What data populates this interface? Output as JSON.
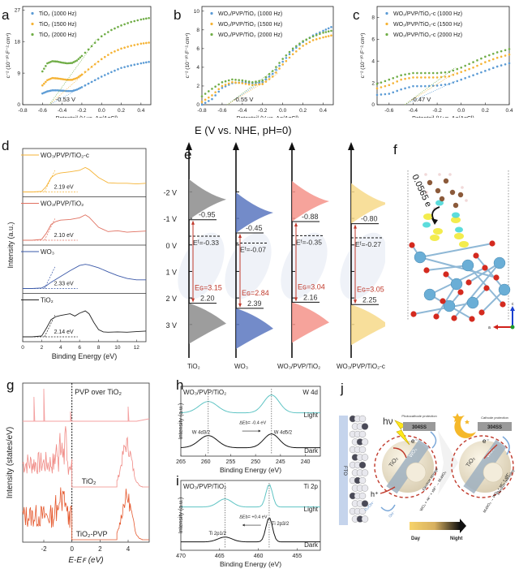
{
  "chart_data": [
    {
      "panel": "a",
      "type": "scatter",
      "title": "",
      "xlabel": "Potentail (V vs. Ag/AgCl)",
      "ylabel": "c⁻² (10⁻¹⁰·F⁻²·cm⁴)",
      "xlim": [
        -0.8,
        0.5
      ],
      "ylim": [
        0,
        28
      ],
      "xticks": [
        "-0.8",
        "-0.6",
        "-0.4",
        "-0.2",
        "0.0",
        "0.2",
        "0.4"
      ],
      "yticks": [
        "0",
        "9",
        "18",
        "27"
      ],
      "annotation": "-0.53 V",
      "intercept": -0.53,
      "series": [
        {
          "name": "TiO₂ (1000 Hz)",
          "color": "#5b9bd5",
          "x": [
            -0.6,
            -0.55,
            -0.5,
            -0.45,
            -0.4,
            -0.35,
            -0.3,
            -0.25,
            -0.2,
            -0.1,
            0.0,
            0.1,
            0.2,
            0.3,
            0.4,
            0.48
          ],
          "y": [
            3.2,
            3.8,
            4.1,
            4.1,
            4.0,
            3.9,
            3.9,
            4.3,
            5.0,
            6.5,
            8.0,
            9.3,
            10.5,
            11.2,
            11.8,
            12.2
          ]
        },
        {
          "name": "TiO₂ (1500 Hz)",
          "color": "#f5b335",
          "x": [
            -0.6,
            -0.55,
            -0.5,
            -0.45,
            -0.4,
            -0.35,
            -0.3,
            -0.25,
            -0.2,
            -0.1,
            0.0,
            0.1,
            0.2,
            0.3,
            0.4,
            0.48
          ],
          "y": [
            5.5,
            7.0,
            7.6,
            7.5,
            7.3,
            7.1,
            7.1,
            7.6,
            8.6,
            10.8,
            13.0,
            14.8,
            16.0,
            16.8,
            17.4,
            17.7
          ]
        },
        {
          "name": "TiO₂ (2000 Hz)",
          "color": "#70ad47",
          "x": [
            -0.6,
            -0.55,
            -0.5,
            -0.45,
            -0.4,
            -0.35,
            -0.3,
            -0.25,
            -0.2,
            -0.1,
            0.0,
            0.1,
            0.2,
            0.3,
            0.4,
            0.48
          ],
          "y": [
            9.5,
            11.8,
            12.4,
            12.3,
            12.0,
            11.8,
            11.9,
            12.6,
            13.9,
            16.7,
            19.5,
            21.3,
            22.6,
            23.6,
            24.3,
            24.7
          ]
        }
      ]
    },
    {
      "panel": "b",
      "type": "scatter",
      "title": "",
      "xlabel": "Potentail (V vs. Ag/AgCl)",
      "ylabel": "c⁻² (10⁻¹⁰·F⁻²·cm⁴)",
      "xlim": [
        -0.8,
        0.5
      ],
      "ylim": [
        0,
        10.5
      ],
      "xticks": [
        "-0.8",
        "-0.6",
        "-0.4",
        "-0.2",
        "0.0",
        "0.2",
        "0.4"
      ],
      "yticks": [
        "0",
        "2",
        "4",
        "6",
        "8",
        "10"
      ],
      "annotation": "-0.55 V",
      "intercept": -0.55,
      "series": [
        {
          "name": "WO₃/PVP/TiO₂ (1000 Hz)",
          "color": "#5b9bd5",
          "x": [
            -0.8,
            -0.7,
            -0.6,
            -0.5,
            -0.4,
            -0.3,
            -0.2,
            -0.1,
            0.0,
            0.1,
            0.2,
            0.3,
            0.4,
            0.48
          ],
          "y": [
            0.0,
            0.6,
            1.8,
            2.3,
            2.4,
            2.3,
            2.4,
            3.3,
            4.6,
            5.8,
            6.7,
            7.4,
            7.9,
            8.3
          ]
        },
        {
          "name": "WO₃/PVP/TiO₂ (1500 Hz)",
          "color": "#f5b335",
          "x": [
            -0.8,
            -0.7,
            -0.6,
            -0.5,
            -0.4,
            -0.3,
            -0.2,
            -0.1,
            0.0,
            0.1,
            0.2,
            0.3,
            0.4,
            0.48
          ],
          "y": [
            0.3,
            1.0,
            2.0,
            2.4,
            2.3,
            2.1,
            2.2,
            3.0,
            4.3,
            5.4,
            6.3,
            6.9,
            7.2,
            7.4
          ]
        },
        {
          "name": "WO₃/PVP/TiO₂ (2000 Hz)",
          "color": "#70ad47",
          "x": [
            -0.8,
            -0.7,
            -0.6,
            -0.5,
            -0.4,
            -0.3,
            -0.2,
            -0.1,
            0.0,
            0.1,
            0.2,
            0.3,
            0.4,
            0.48
          ],
          "y": [
            0.9,
            1.7,
            2.4,
            2.7,
            2.6,
            2.4,
            2.6,
            3.6,
            4.9,
            6.0,
            6.8,
            7.3,
            7.7,
            7.9
          ]
        }
      ]
    },
    {
      "panel": "c",
      "type": "scatter",
      "title": "",
      "xlabel": "Potentail (V vs. Ag/AgCl)",
      "ylabel": "c⁻² (10⁻¹⁰·F⁻²·cm⁴)",
      "xlim": [
        -0.7,
        0.4
      ],
      "ylim": [
        0,
        9
      ],
      "xticks": [
        "-0.6",
        "-0.4",
        "-0.2",
        "0.0",
        "0.2",
        "0.4"
      ],
      "yticks": [
        "0",
        "2",
        "4",
        "6",
        "8"
      ],
      "annotation": "-0.47 V",
      "intercept": -0.47,
      "series": [
        {
          "name": "WO₃/PVP/TiO₂-c (1000 Hz)",
          "color": "#5b9bd5",
          "x": [
            -0.7,
            -0.6,
            -0.5,
            -0.4,
            -0.3,
            -0.2,
            -0.1,
            0.0,
            0.1,
            0.2,
            0.3,
            0.4
          ],
          "y": [
            0.9,
            1.0,
            1.4,
            1.7,
            1.7,
            1.75,
            1.9,
            2.3,
            2.7,
            3.1,
            3.5,
            3.8
          ]
        },
        {
          "name": "WO₃/PVP/TiO₂-c (1500 Hz)",
          "color": "#f5b335",
          "x": [
            -0.7,
            -0.6,
            -0.5,
            -0.4,
            -0.3,
            -0.2,
            -0.1,
            0.0,
            0.1,
            0.2,
            0.3,
            0.4
          ],
          "y": [
            1.5,
            1.8,
            2.3,
            2.5,
            2.5,
            2.5,
            2.6,
            3.0,
            3.4,
            3.9,
            4.3,
            4.6
          ]
        },
        {
          "name": "WO₃/PVP/TiO₂-c (2000 Hz)",
          "color": "#70ad47",
          "x": [
            -0.7,
            -0.6,
            -0.5,
            -0.4,
            -0.3,
            -0.2,
            -0.1,
            0.0,
            0.1,
            0.2,
            0.3,
            0.4
          ],
          "y": [
            1.9,
            2.3,
            2.7,
            2.9,
            2.9,
            2.9,
            3.0,
            3.4,
            3.9,
            4.4,
            4.8,
            5.1
          ]
        }
      ]
    },
    {
      "panel": "d",
      "type": "line",
      "xlabel": "Binding Energy (eV)",
      "ylabel": "Intensity (a.u.)",
      "xlim": [
        0,
        13
      ],
      "xticks": [
        "0",
        "2",
        "4",
        "6",
        "8",
        "10",
        "12"
      ],
      "series": [
        {
          "name": "WO₃/PVP/TiO₂-c",
          "color": "#f5b335",
          "bandgap": "2.19 eV",
          "x": [
            0,
            1,
            2,
            2.5,
            3,
            3.5,
            4,
            5,
            6,
            6.6,
            7,
            8,
            9,
            10,
            11,
            12,
            13
          ],
          "y": [
            0,
            0,
            0.02,
            0.2,
            0.5,
            0.62,
            0.66,
            0.7,
            0.75,
            0.85,
            0.78,
            0.5,
            0.32,
            0.3,
            0.3,
            0.28,
            0.3
          ]
        },
        {
          "name": "WO₃/PVP/TiO₂",
          "color": "#e07060",
          "bandgap": "2.10 eV",
          "x": [
            0,
            1,
            2,
            2.5,
            3,
            3.5,
            4,
            5,
            6,
            6.6,
            7,
            8,
            9,
            10,
            11,
            12,
            13
          ],
          "y": [
            0,
            0,
            0.03,
            0.25,
            0.55,
            0.65,
            0.7,
            0.72,
            0.78,
            0.88,
            0.8,
            0.45,
            0.3,
            0.33,
            0.28,
            0.3,
            0.32
          ]
        },
        {
          "name": "WO₃",
          "color": "#3a58a8",
          "bandgap": "2.33 eV",
          "x": [
            0,
            1,
            2,
            2.5,
            3,
            4,
            5,
            6,
            6.6,
            7,
            8,
            9,
            10,
            11,
            12,
            13
          ],
          "y": [
            0,
            0,
            0.02,
            0.1,
            0.22,
            0.42,
            0.62,
            0.8,
            0.84,
            0.82,
            0.72,
            0.58,
            0.45,
            0.35,
            0.3,
            0.3
          ]
        },
        {
          "name": "TiO₂",
          "color": "#222222",
          "bandgap": "2.14 eV",
          "x": [
            0,
            1,
            2,
            2.5,
            3,
            3.5,
            4,
            5,
            5.5,
            6,
            6.6,
            7,
            7.5,
            8,
            8.5,
            9,
            10,
            11,
            12,
            13
          ],
          "y": [
            0,
            0,
            0.03,
            0.3,
            0.6,
            0.7,
            0.74,
            0.8,
            0.72,
            0.82,
            0.9,
            0.8,
            0.5,
            0.25,
            0.17,
            0.16,
            0.17,
            0.16,
            0.18,
            0.2
          ]
        }
      ]
    },
    {
      "panel": "e",
      "type": "diagram",
      "title": "E (V vs. NHE, pH=0)",
      "yticks": [
        "-2 V",
        "-1 V",
        "0 V",
        "1 V",
        "2 V",
        "3 V"
      ],
      "ylim": [
        -2.9,
        4.2
      ],
      "materials": [
        {
          "name": "TiO₂",
          "color": "#8c8c8c",
          "cb": "-0.95",
          "cb_val": -0.95,
          "ef": "Eᶠ=-0.33",
          "ef_val": -0.33,
          "eg": "Eɢ=3.15",
          "vb": "2.20",
          "vb_val": 2.2,
          "watermark": "TiO₂"
        },
        {
          "name": "WO₃",
          "color": "#5b77c0",
          "cb": "-0.45",
          "cb_val": -0.45,
          "ef": "Eᶠ=-0.07",
          "ef_val": -0.07,
          "eg": "Eɢ=2.84",
          "vb": "2.39",
          "vb_val": 2.39,
          "watermark": "WO₃"
        },
        {
          "name": "WO₃/PVP/TiO₂",
          "color": "#f4938a",
          "cb": "-0.88",
          "cb_val": -0.88,
          "ef": "Eᶠ=-0.35",
          "ef_val": -0.35,
          "eg": "Eɢ=3.04",
          "vb": "2.16",
          "vb_val": 2.16,
          "watermark": ""
        },
        {
          "name": "WO₃/PVP/TiO₂-c",
          "color": "#f7d98a",
          "cb": "-0.80",
          "cb_val": -0.8,
          "ef": "Eᶠ=-0.27",
          "ef_val": -0.27,
          "eg": "Eɢ=3.05",
          "vb": "2.25",
          "vb_val": 2.25,
          "watermark": ""
        }
      ]
    },
    {
      "panel": "g",
      "type": "line",
      "xlabel": "E-Eꜰ (eV)",
      "ylabel": "Intensity (states/eV)",
      "xlim": [
        -3.5,
        5.5
      ],
      "xticks": [
        "-2",
        "0",
        "2",
        "4"
      ],
      "series": [
        {
          "name": "PVP over TiO₂",
          "color": "#f4a0a0",
          "peaks": [
            [
              -2.7,
              0.75
            ],
            [
              -2.0,
              1.0
            ],
            [
              -0.1,
              0.3
            ],
            [
              4.0,
              0.45
            ]
          ]
        },
        {
          "name": "TiO₂",
          "color": "#f08a85"
        },
        {
          "name": "TiO₂-PVP",
          "color": "#e55a30"
        }
      ]
    },
    {
      "panel": "h",
      "type": "line",
      "xlabel": "Binding Energy (eV)",
      "ylabel": "Intensity (a.u.)",
      "xlim": [
        265,
        237
      ],
      "xticks": [
        "265",
        "260",
        "255",
        "250",
        "245",
        "240"
      ],
      "sample": "WO₃/PVP/TiO₂",
      "region": "W 4d",
      "shift": "ΔEb= -0.4 eV",
      "peak_labels": [
        "W 4d3/2",
        "W 4d5/2"
      ],
      "peaks": [
        259.5,
        246.8
      ],
      "series": [
        {
          "name": "Light",
          "color": "#5fc4c4"
        },
        {
          "name": "Dark",
          "color": "#111111"
        }
      ]
    },
    {
      "panel": "i",
      "type": "line",
      "xlabel": "Binding Energy (eV)",
      "ylabel": "Intensity (a.u.)",
      "xlim": [
        470,
        452
      ],
      "xticks": [
        "470",
        "465",
        "460",
        "455"
      ],
      "sample": "WO₃/PVP/TiO₂",
      "region": "Ti 2p",
      "shift": "ΔEb= +0.4 eV",
      "peak_labels": [
        "Ti 2p1/2",
        "Ti 2p3/2"
      ],
      "peaks": [
        464.3,
        458.6
      ],
      "series": [
        {
          "name": "Light",
          "color": "#5fc4c4"
        },
        {
          "name": "Dark",
          "color": "#111111"
        }
      ]
    }
  ],
  "labels": {
    "a": "a",
    "b": "b",
    "c": "c",
    "d": "d",
    "e": "e",
    "f": "f",
    "g": "g",
    "h": "h",
    "i": "i",
    "j": "j"
  },
  "panel_f": {
    "charge": "0.0565 e",
    "axis_c": "c",
    "axis_a": "a"
  },
  "panel_j": {
    "hv": "hν",
    "photocathode": "Photocathode protection",
    "cathode": "Cathode protection",
    "substrate1": "304SS",
    "substrate2": "304SS",
    "electron": "e⁻",
    "hole": "h⁺",
    "fto": "FTO",
    "tio2": "TiO₂",
    "wo3": "WO₃",
    "storage": "Electron storage",
    "storage_eq": "WO₃ + xe⁻ + xM⁺ → MₓWO₃",
    "releasing": "Electron releasing",
    "releasing_eq": "MₓWO₃ → WO₃ + xe⁻ + xM⁺",
    "o2": "O₂/OH⁻",
    "oh": "OH⁻",
    "day": "Day",
    "night": "Night"
  }
}
